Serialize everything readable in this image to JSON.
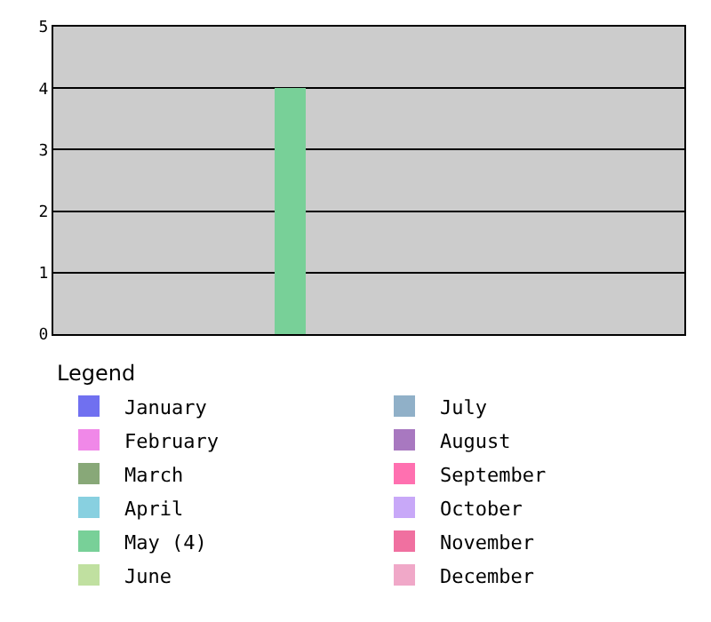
{
  "chart_data": {
    "type": "bar",
    "categories": [
      null,
      null,
      null,
      null,
      null,
      null,
      null,
      null,
      null,
      null,
      null,
      null
    ],
    "series": [
      {
        "name": "January",
        "color": "#7070f0",
        "values": [
          0,
          null,
          null,
          null,
          null,
          null,
          null,
          null,
          null,
          null,
          null,
          null
        ]
      },
      {
        "name": "July",
        "color": "#90b0c8",
        "values": [
          null,
          null,
          null,
          null,
          null,
          null,
          0,
          null,
          null,
          null,
          null,
          null
        ]
      },
      {
        "name": "February",
        "color": "#f088e8",
        "values": [
          null,
          0,
          null,
          null,
          null,
          null,
          null,
          null,
          null,
          null,
          null,
          null
        ]
      },
      {
        "name": "August",
        "color": "#a878c0",
        "values": [
          null,
          null,
          null,
          null,
          null,
          null,
          null,
          0,
          null,
          null,
          null,
          null
        ]
      },
      {
        "name": "March",
        "color": "#88a878",
        "values": [
          null,
          null,
          0,
          null,
          null,
          null,
          null,
          null,
          null,
          null,
          null,
          null
        ]
      },
      {
        "name": "September",
        "color": "#ff70b0",
        "values": [
          null,
          null,
          null,
          null,
          null,
          null,
          null,
          null,
          0,
          null,
          null,
          null
        ]
      },
      {
        "name": "April",
        "color": "#88d0e0",
        "values": [
          null,
          null,
          null,
          0,
          null,
          null,
          null,
          null,
          null,
          null,
          null,
          null
        ]
      },
      {
        "name": "October",
        "color": "#c8a8f8",
        "values": [
          null,
          null,
          null,
          null,
          null,
          null,
          null,
          null,
          null,
          0,
          null,
          null
        ]
      },
      {
        "name": "May (4)",
        "color": "#78d098",
        "values": [
          null,
          null,
          null,
          null,
          4,
          null,
          null,
          null,
          null,
          null,
          null,
          null
        ]
      },
      {
        "name": "November",
        "color": "#f070a0",
        "values": [
          null,
          null,
          null,
          null,
          null,
          null,
          null,
          null,
          null,
          null,
          0,
          null
        ]
      },
      {
        "name": "June",
        "color": "#c0e0a0",
        "values": [
          null,
          null,
          null,
          null,
          null,
          0,
          null,
          null,
          null,
          null,
          null,
          null
        ]
      },
      {
        "name": "December",
        "color": "#f0a8c8",
        "values": [
          null,
          null,
          null,
          null,
          null,
          null,
          null,
          null,
          null,
          null,
          null,
          0
        ]
      }
    ],
    "ylim": [
      0,
      5
    ],
    "yticks": [
      0,
      1,
      2,
      3,
      4,
      5
    ],
    "grid": "y",
    "legend": "bottom",
    "legend_title": "Legend",
    "stacked": true
  }
}
